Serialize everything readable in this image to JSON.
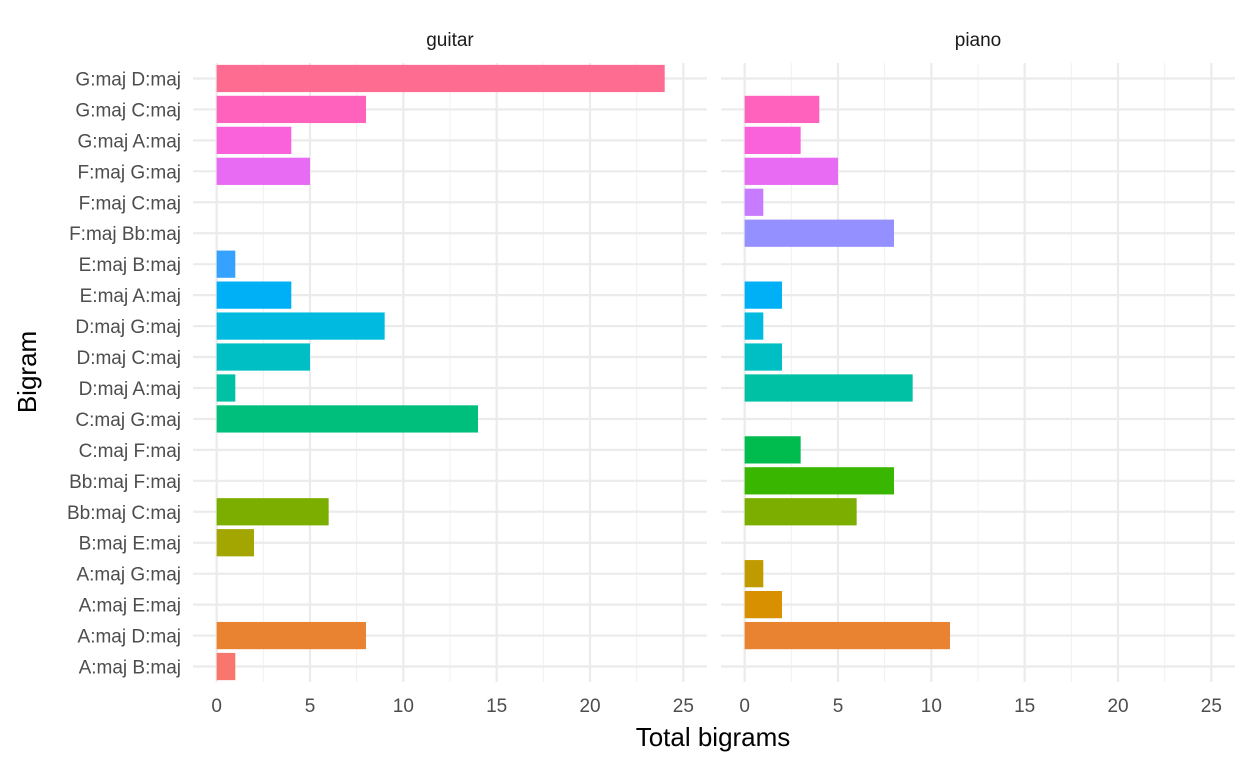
{
  "chart_data": {
    "type": "bar",
    "orientation": "horizontal",
    "xlabel": "Total bigrams",
    "ylabel": "Bigram",
    "xlim": [
      0,
      25
    ],
    "xticks": [
      0,
      5,
      10,
      15,
      20,
      25
    ],
    "grid": true,
    "categories": [
      "A:maj B:maj",
      "A:maj D:maj",
      "A:maj E:maj",
      "A:maj G:maj",
      "B:maj E:maj",
      "Bb:maj C:maj",
      "Bb:maj F:maj",
      "C:maj F:maj",
      "C:maj G:maj",
      "D:maj A:maj",
      "D:maj C:maj",
      "D:maj G:maj",
      "E:maj A:maj",
      "E:maj B:maj",
      "F:maj Bb:maj",
      "F:maj C:maj",
      "F:maj G:maj",
      "G:maj A:maj",
      "G:maj C:maj",
      "G:maj D:maj"
    ],
    "colors": [
      "#F8766D",
      "#EA8331",
      "#D89000",
      "#C09B00",
      "#A3A500",
      "#7CAE00",
      "#39B600",
      "#00BB4E",
      "#00BF7D",
      "#00C1A3",
      "#00BFC4",
      "#00BAE0",
      "#00B0F6",
      "#35A2FF",
      "#9590FF",
      "#C77CFF",
      "#E76BF3",
      "#FA62DB",
      "#FF62BC",
      "#FF6C91"
    ],
    "panels": [
      {
        "name": "guitar",
        "values": [
          1,
          8,
          null,
          null,
          2,
          6,
          null,
          null,
          14,
          1,
          5,
          9,
          4,
          1,
          null,
          null,
          5,
          4,
          8,
          24
        ]
      },
      {
        "name": "piano",
        "values": [
          null,
          11,
          2,
          1,
          null,
          6,
          8,
          3,
          null,
          9,
          2,
          1,
          2,
          null,
          8,
          1,
          5,
          3,
          4,
          null
        ]
      }
    ]
  }
}
